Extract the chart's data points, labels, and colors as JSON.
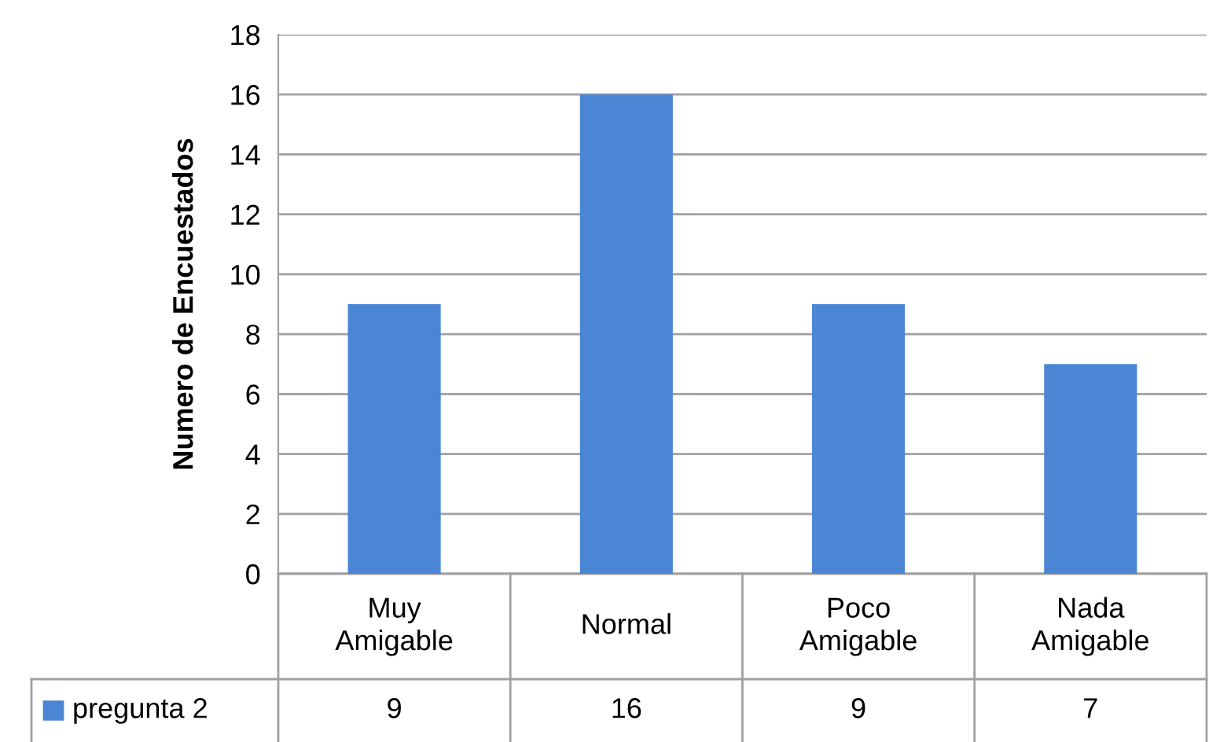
{
  "chart_data": {
    "type": "bar",
    "ylabel": "Numero de Encuestados",
    "categories": [
      "Muy\nAmigable",
      "Normal",
      "Poco\nAmigable",
      "Nada\nAmigable"
    ],
    "series": [
      {
        "name": "pregunta 2",
        "color": "#4a86d4",
        "values": [
          9,
          16,
          9,
          7
        ]
      }
    ],
    "ylim": [
      0,
      18
    ],
    "yticks": [
      0,
      2,
      4,
      6,
      8,
      10,
      12,
      14,
      16,
      18
    ],
    "grid": "y",
    "legend": "bottom",
    "data_labels": true
  }
}
